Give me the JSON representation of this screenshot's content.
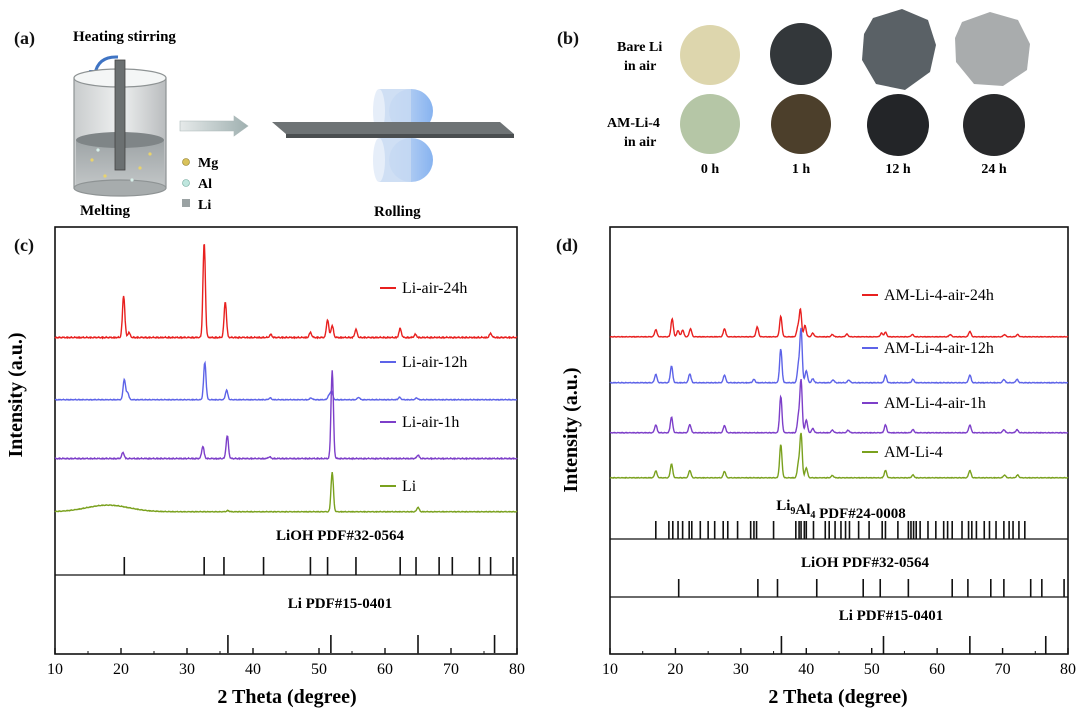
{
  "panels": {
    "a": {
      "label": "(a)",
      "heating_label": "Heating stirring",
      "melting_label": "Melting",
      "rolling_label": "Rolling",
      "legend": [
        {
          "name": "Mg",
          "color": "#d9c25a"
        },
        {
          "name": "Al",
          "color": "#bfe6de"
        },
        {
          "name": "Li",
          "color": "#9aa2a3"
        }
      ]
    },
    "b": {
      "label": "(b)",
      "rows": [
        {
          "line1": "Bare Li",
          "line2": "in air",
          "colors": [
            "#ddd6ad",
            "#33373a",
            "#5a6166",
            "#a9acad"
          ]
        },
        {
          "line1": "AM-Li-4",
          "line2": "in air",
          "colors": [
            "#b5c6a6",
            "#4c3f2b",
            "#232528",
            "#28292b"
          ]
        }
      ],
      "times": [
        "0 h",
        "1 h",
        "12 h",
        "24 h"
      ]
    }
  },
  "chart_data": [
    {
      "type": "line",
      "panel_label": "(c)",
      "xlabel": "2 Theta (degree)",
      "ylabel": "Intensity (a.u.)",
      "xlim": [
        10,
        80
      ],
      "xticks": [
        10,
        20,
        30,
        40,
        50,
        60,
        70,
        80
      ],
      "series": [
        {
          "name": "Li-air-24h",
          "color": "#e8201f",
          "peaks": [
            [
              20.4,
              0.42
            ],
            [
              21.2,
              0.05
            ],
            [
              32.6,
              0.95
            ],
            [
              35.8,
              0.36
            ],
            [
              42.7,
              0.03
            ],
            [
              48.7,
              0.05
            ],
            [
              51.3,
              0.18
            ],
            [
              52.0,
              0.12
            ],
            [
              55.6,
              0.08
            ],
            [
              62.3,
              0.09
            ],
            [
              64.6,
              0.03
            ],
            [
              76.0,
              0.04
            ]
          ]
        },
        {
          "name": "Li-air-12h",
          "color": "#5d63e8",
          "peaks": [
            [
              20.5,
              0.34
            ],
            [
              21.0,
              0.12
            ],
            [
              32.7,
              0.62
            ],
            [
              36.0,
              0.16
            ],
            [
              42.6,
              0.03
            ],
            [
              48.8,
              0.03
            ],
            [
              51.5,
              0.07
            ],
            [
              51.9,
              0.14
            ],
            [
              56.0,
              0.04
            ],
            [
              62.2,
              0.04
            ],
            [
              64.8,
              0.03
            ]
          ]
        },
        {
          "name": "Li-air-1h",
          "color": "#7d3fc9",
          "peaks": [
            [
              20.3,
              0.07
            ],
            [
              32.4,
              0.14
            ],
            [
              36.1,
              0.26
            ],
            [
              42.5,
              0.02
            ],
            [
              52.0,
              1.0
            ],
            [
              65.0,
              0.04
            ]
          ]
        },
        {
          "name": "Li",
          "color": "#7aa11e",
          "peaks": [
            [
              36.2,
              0.02
            ],
            [
              52.0,
              0.72
            ],
            [
              65.0,
              0.08
            ]
          ]
        }
      ],
      "references": [
        {
          "label": "LiOH PDF#32-0564",
          "sticks": [
            20.5,
            32.6,
            35.6,
            41.6,
            48.7,
            51.3,
            55.6,
            62.3,
            64.7,
            68.2,
            70.2,
            74.3,
            76.0,
            79.4
          ]
        },
        {
          "label": "Li PDF#15-0401",
          "sticks": [
            36.2,
            51.8,
            65.0,
            76.6
          ]
        }
      ]
    },
    {
      "type": "line",
      "panel_label": "(d)",
      "xlabel": "2 Theta (degree)",
      "ylabel": "Intensity (a.u.)",
      "xlim": [
        10,
        80
      ],
      "xticks": [
        10,
        20,
        30,
        40,
        50,
        60,
        70,
        80
      ],
      "series": [
        {
          "name": "AM-Li-4-air-24h",
          "color": "#e8201f",
          "peaks": [
            [
              17.0,
              0.16
            ],
            [
              19.5,
              0.4
            ],
            [
              20.4,
              0.14
            ],
            [
              21.1,
              0.15
            ],
            [
              22.3,
              0.18
            ],
            [
              27.5,
              0.18
            ],
            [
              32.5,
              0.22
            ],
            [
              36.1,
              0.45
            ],
            [
              38.7,
              0.2
            ],
            [
              39.1,
              0.6
            ],
            [
              39.8,
              0.25
            ],
            [
              41.0,
              0.08
            ],
            [
              44.0,
              0.05
            ],
            [
              46.2,
              0.06
            ],
            [
              51.5,
              0.08
            ],
            [
              52.1,
              0.1
            ],
            [
              56.2,
              0.05
            ],
            [
              62.0,
              0.05
            ],
            [
              65.0,
              0.12
            ],
            [
              70.3,
              0.05
            ],
            [
              72.3,
              0.05
            ]
          ]
        },
        {
          "name": "AM-Li-4-air-12h",
          "color": "#5d63e8",
          "peaks": [
            [
              17.0,
              0.15
            ],
            [
              19.4,
              0.3
            ],
            [
              22.2,
              0.16
            ],
            [
              27.5,
              0.14
            ],
            [
              32.0,
              0.06
            ],
            [
              36.1,
              0.6
            ],
            [
              38.8,
              0.3
            ],
            [
              39.2,
              0.95
            ],
            [
              40.0,
              0.22
            ],
            [
              41.0,
              0.07
            ],
            [
              44.1,
              0.05
            ],
            [
              46.5,
              0.05
            ],
            [
              52.1,
              0.13
            ],
            [
              56.3,
              0.06
            ],
            [
              65.0,
              0.14
            ],
            [
              70.2,
              0.06
            ],
            [
              72.2,
              0.06
            ]
          ]
        },
        {
          "name": "AM-Li-4-air-1h",
          "color": "#7d3fc9",
          "peaks": [
            [
              17.0,
              0.15
            ],
            [
              19.4,
              0.3
            ],
            [
              22.2,
              0.16
            ],
            [
              27.5,
              0.14
            ],
            [
              36.1,
              0.7
            ],
            [
              38.8,
              0.3
            ],
            [
              39.2,
              1.0
            ],
            [
              40.0,
              0.25
            ],
            [
              41.0,
              0.08
            ],
            [
              44.0,
              0.05
            ],
            [
              46.4,
              0.05
            ],
            [
              52.1,
              0.15
            ],
            [
              56.3,
              0.06
            ],
            [
              65.0,
              0.15
            ],
            [
              70.2,
              0.06
            ],
            [
              72.2,
              0.06
            ]
          ]
        },
        {
          "name": "AM-Li-4",
          "color": "#7aa11e",
          "peaks": [
            [
              17.0,
              0.15
            ],
            [
              19.4,
              0.3
            ],
            [
              22.2,
              0.16
            ],
            [
              27.5,
              0.14
            ],
            [
              36.1,
              0.72
            ],
            [
              38.8,
              0.3
            ],
            [
              39.2,
              0.95
            ],
            [
              40.0,
              0.22
            ],
            [
              44.0,
              0.05
            ],
            [
              52.1,
              0.16
            ],
            [
              56.3,
              0.06
            ],
            [
              65.0,
              0.16
            ],
            [
              70.3,
              0.06
            ],
            [
              72.3,
              0.06
            ]
          ]
        }
      ],
      "references": [
        {
          "label": "Li9Al4 PDF#24-0008",
          "label_main": "Li",
          "label_sub1": "9",
          "label_mid": "Al",
          "label_sub2": "4",
          "label_rest": " PDF#24-0008",
          "sticks": [
            17.0,
            19.0,
            19.6,
            20.4,
            21.1,
            22.1,
            22.5,
            23.8,
            25.0,
            26.0,
            27.3,
            28.0,
            29.5,
            31.5,
            32.0,
            32.4,
            35.0,
            38.4,
            38.9,
            39.2,
            39.7,
            40.0,
            41.1,
            42.9,
            43.5,
            44.4,
            45.3,
            46.0,
            46.6,
            48.0,
            49.6,
            51.6,
            52.1,
            54.0,
            55.6,
            56.0,
            56.4,
            56.8,
            57.4,
            58.6,
            59.8,
            61.0,
            61.6,
            62.3,
            63.8,
            64.8,
            65.3,
            66.0,
            67.2,
            68.0,
            69.0,
            70.2,
            71.0,
            71.6,
            72.5,
            73.4
          ]
        },
        {
          "label": "LiOH PDF#32-0564",
          "sticks": [
            20.5,
            32.6,
            35.6,
            41.6,
            48.7,
            51.3,
            55.6,
            62.3,
            64.7,
            68.2,
            70.2,
            74.3,
            76.0,
            79.4
          ]
        },
        {
          "label": "Li PDF#15-0401",
          "sticks": [
            36.2,
            51.8,
            65.0,
            76.6
          ]
        }
      ]
    }
  ]
}
